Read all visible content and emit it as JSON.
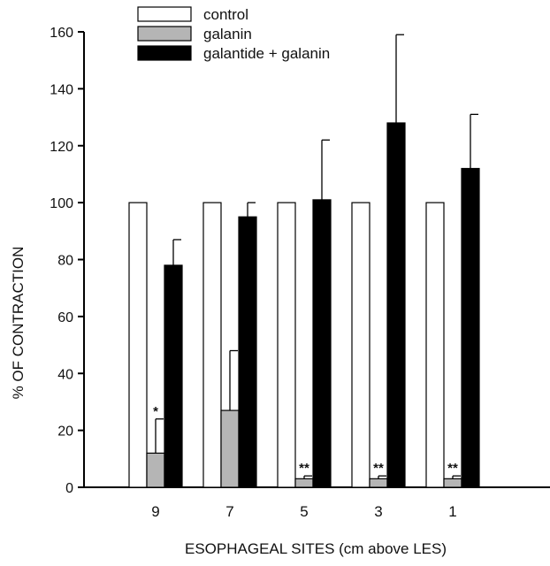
{
  "chart_data": {
    "type": "bar",
    "title": "",
    "xlabel": "ESOPHAGEAL SITES (cm above LES)",
    "ylabel": "% OF CONTRACTION",
    "ylim": [
      0,
      160
    ],
    "yticks": [
      0,
      20,
      40,
      60,
      80,
      100,
      120,
      140,
      160
    ],
    "categories": [
      "9",
      "7",
      "5",
      "3",
      "1"
    ],
    "legend_position": "top-left",
    "series": [
      {
        "name": "control",
        "fill": "#ffffff",
        "values": [
          100,
          100,
          100,
          100,
          100
        ],
        "errors": [
          null,
          null,
          null,
          null,
          null
        ],
        "annotations": [
          "",
          "",
          "",
          "",
          ""
        ]
      },
      {
        "name": "galanin",
        "fill": "#b5b5b5",
        "values": [
          12,
          27,
          3,
          3,
          3
        ],
        "errors": [
          12,
          21,
          1,
          1,
          1
        ],
        "annotations": [
          "*",
          "",
          "**",
          "**",
          "**"
        ]
      },
      {
        "name": "galantide + galanin",
        "fill": "#000000",
        "values": [
          78,
          95,
          101,
          128,
          112
        ],
        "errors": [
          9,
          5,
          21,
          31,
          19
        ],
        "annotations": [
          "",
          "",
          "",
          "",
          ""
        ]
      }
    ]
  }
}
